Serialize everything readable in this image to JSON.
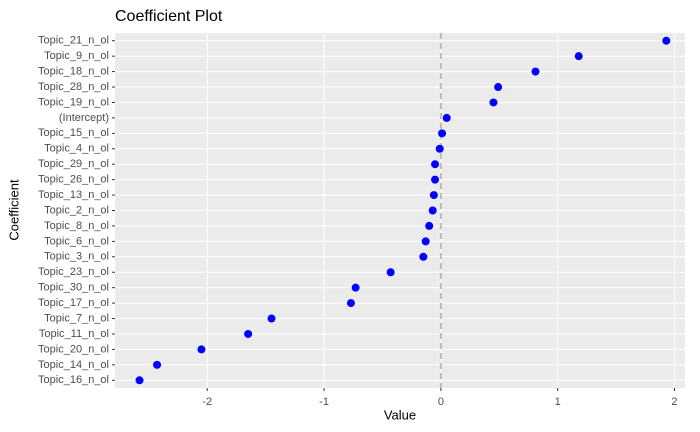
{
  "chart_data": {
    "type": "dot",
    "title": "Coefficient Plot",
    "x_label": "Value",
    "y_label": "Coefficient",
    "categories": [
      "Topic_21_n_ol",
      "Topic_9_n_ol",
      "Topic_18_n_ol",
      "Topic_28_n_ol",
      "Topic_19_n_ol",
      "(Intercept)",
      "Topic_15_n_ol",
      "Topic_4_n_ol",
      "Topic_29_n_ol",
      "Topic_26_n_ol",
      "Topic_13_n_ol",
      "Topic_2_n_ol",
      "Topic_8_n_ol",
      "Topic_6_n_ol",
      "Topic_3_n_ol",
      "Topic_23_n_ol",
      "Topic_30_n_ol",
      "Topic_17_n_ol",
      "Topic_7_n_ol",
      "Topic_11_n_ol",
      "Topic_20_n_ol",
      "Topic_14_n_ol",
      "Topic_16_n_ol"
    ],
    "values": [
      1.93,
      1.18,
      0.81,
      0.49,
      0.45,
      0.05,
      0.01,
      -0.01,
      -0.05,
      -0.05,
      -0.06,
      -0.07,
      -0.1,
      -0.13,
      -0.15,
      -0.43,
      -0.73,
      -0.77,
      -1.45,
      -1.65,
      -2.05,
      -2.43,
      -2.58
    ],
    "color": "#0000ff",
    "xlim": [
      -2.79,
      2.09
    ],
    "xticks": [
      -2,
      -1,
      0,
      1,
      2
    ],
    "vline": 0,
    "vline_color": "#bbbbbb",
    "grid": true
  }
}
